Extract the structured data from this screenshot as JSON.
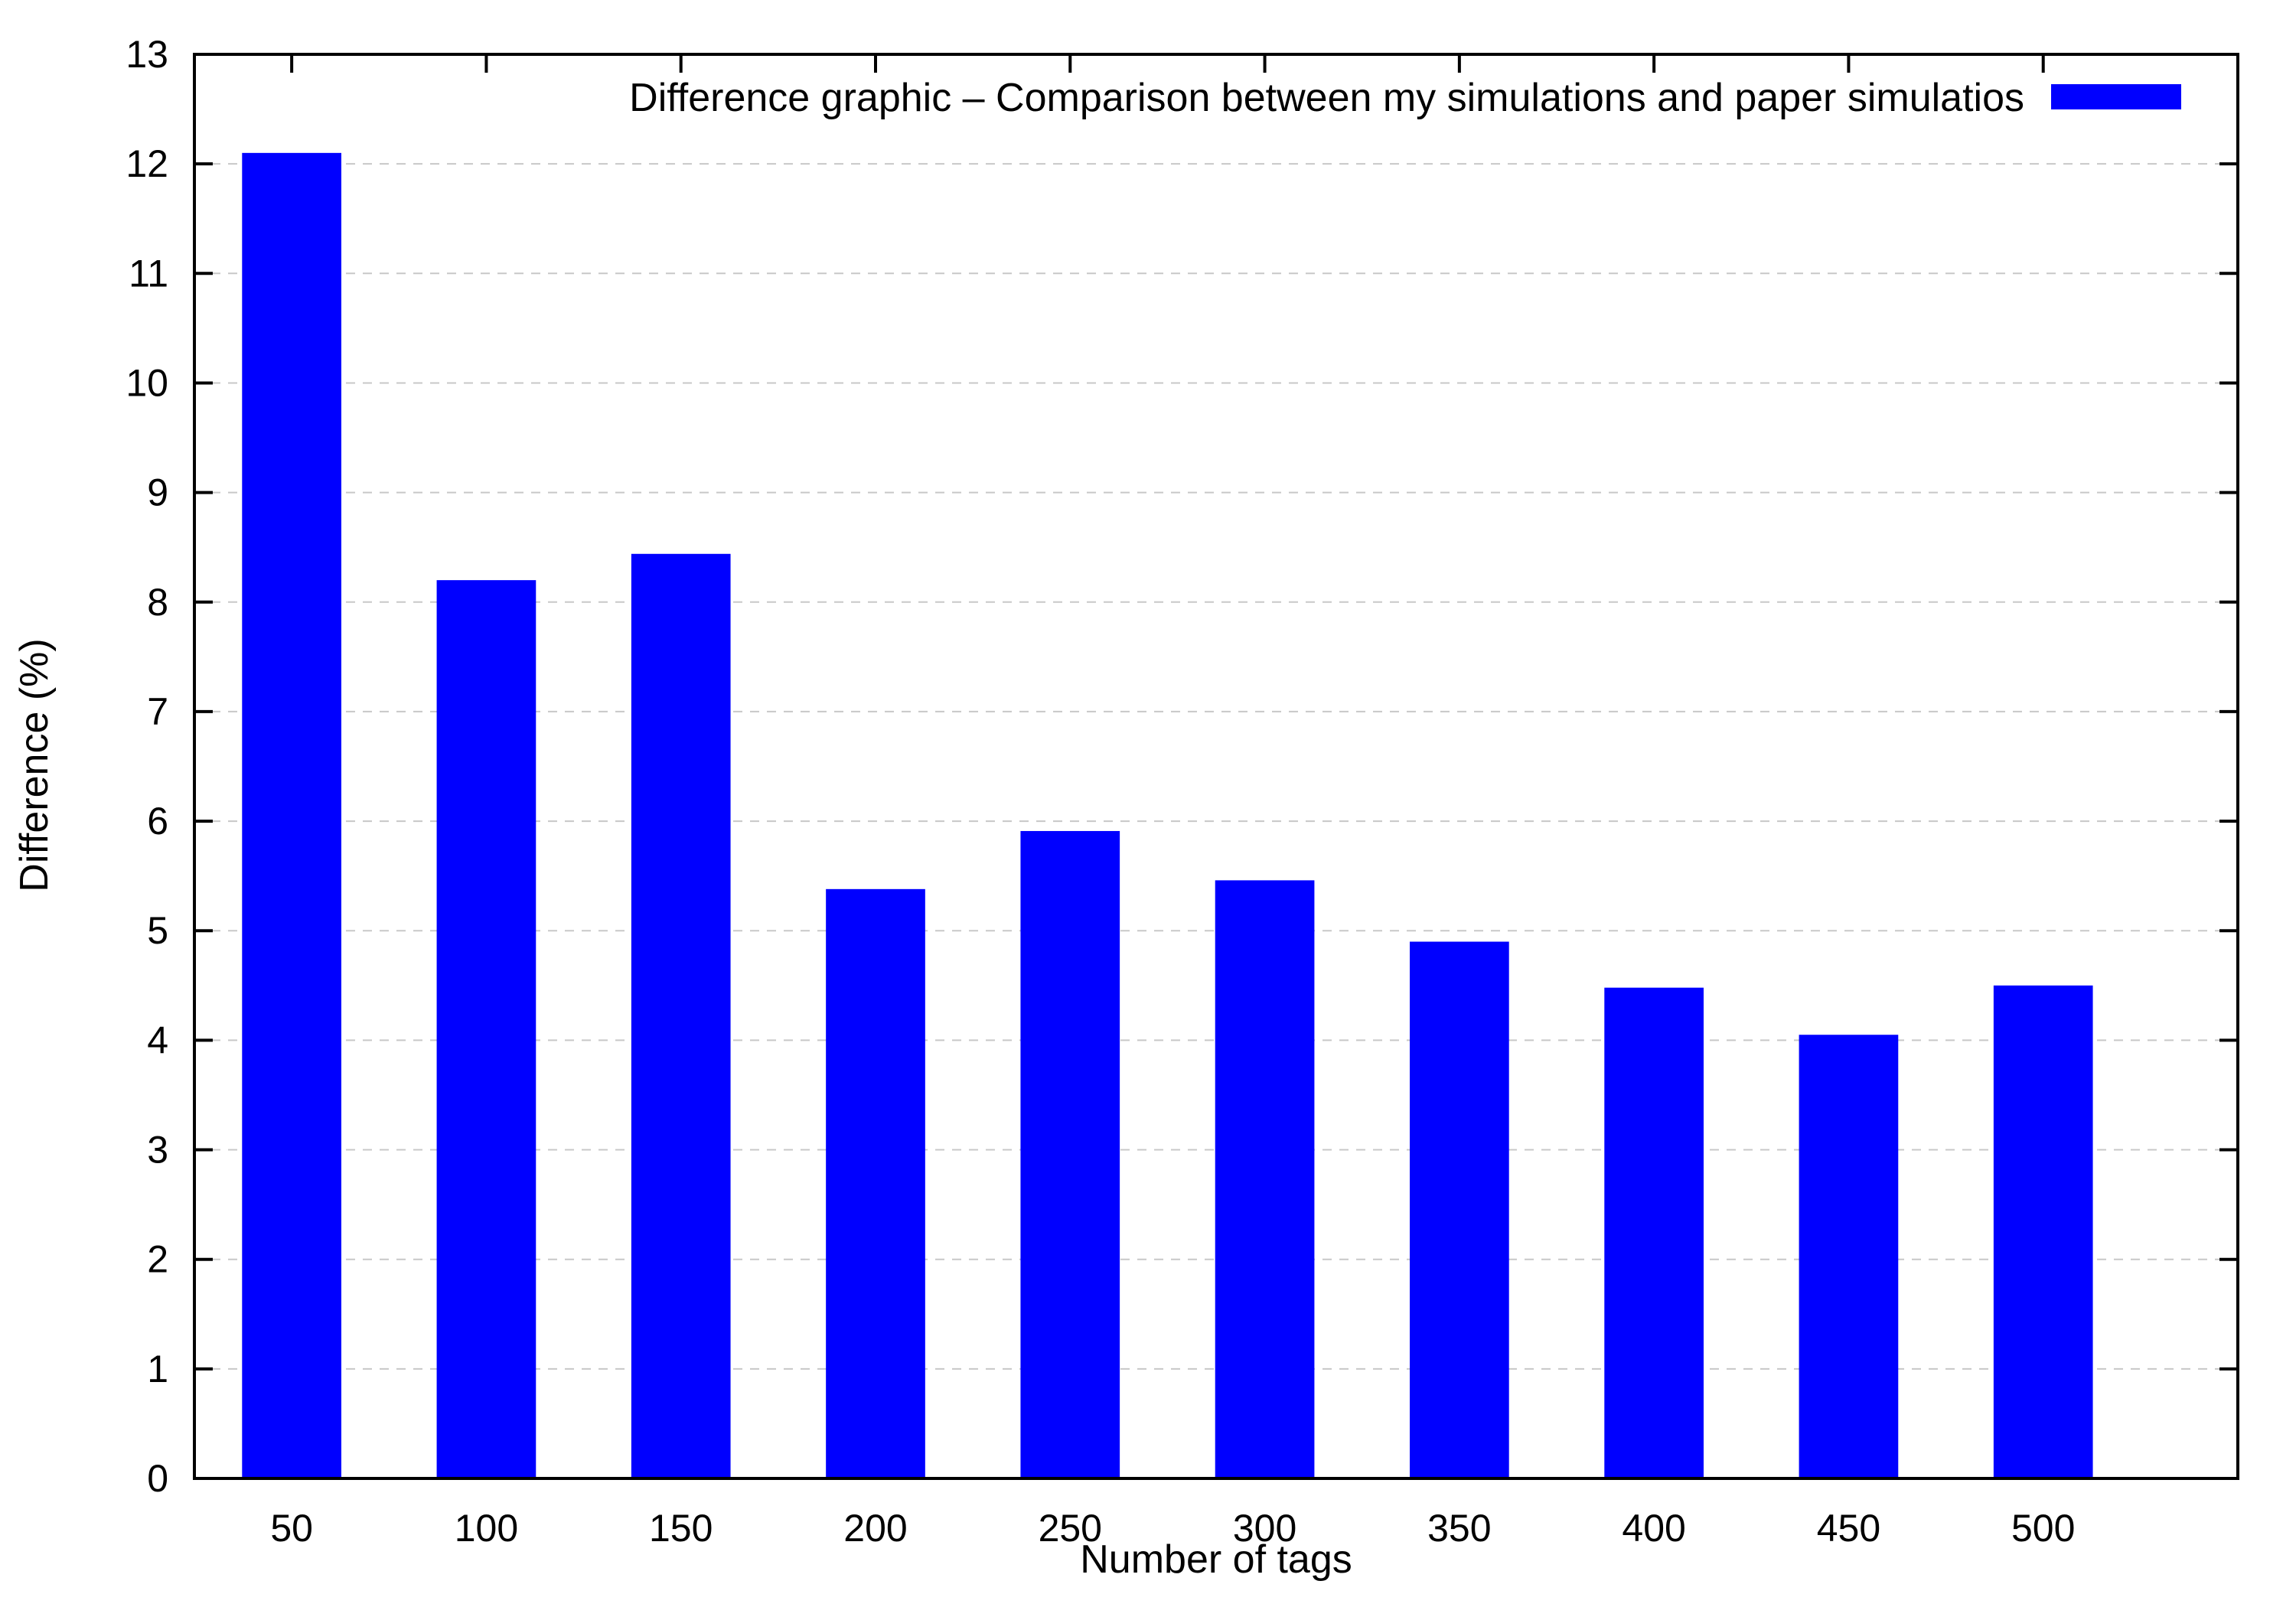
{
  "chart_data": {
    "type": "bar",
    "title": "",
    "xlabel": "Number of tags",
    "ylabel": "Difference (%)",
    "categories": [
      "50",
      "100",
      "150",
      "200",
      "250",
      "300",
      "350",
      "400",
      "450",
      "500"
    ],
    "series": [
      {
        "name": "Difference graphic – Comparison between my simulations and paper simulatios",
        "color": "#0000ff",
        "values": [
          12.1,
          8.2,
          8.44,
          5.38,
          5.91,
          5.46,
          4.9,
          4.48,
          4.05,
          4.5
        ]
      }
    ],
    "ylim": [
      0,
      13
    ],
    "yticks": [
      "0",
      "1",
      "2",
      "3",
      "4",
      "5",
      "6",
      "7",
      "8",
      "9",
      "10",
      "11",
      "12",
      "13"
    ],
    "grid": "horizontal dashed",
    "legend_position": "top-right"
  }
}
